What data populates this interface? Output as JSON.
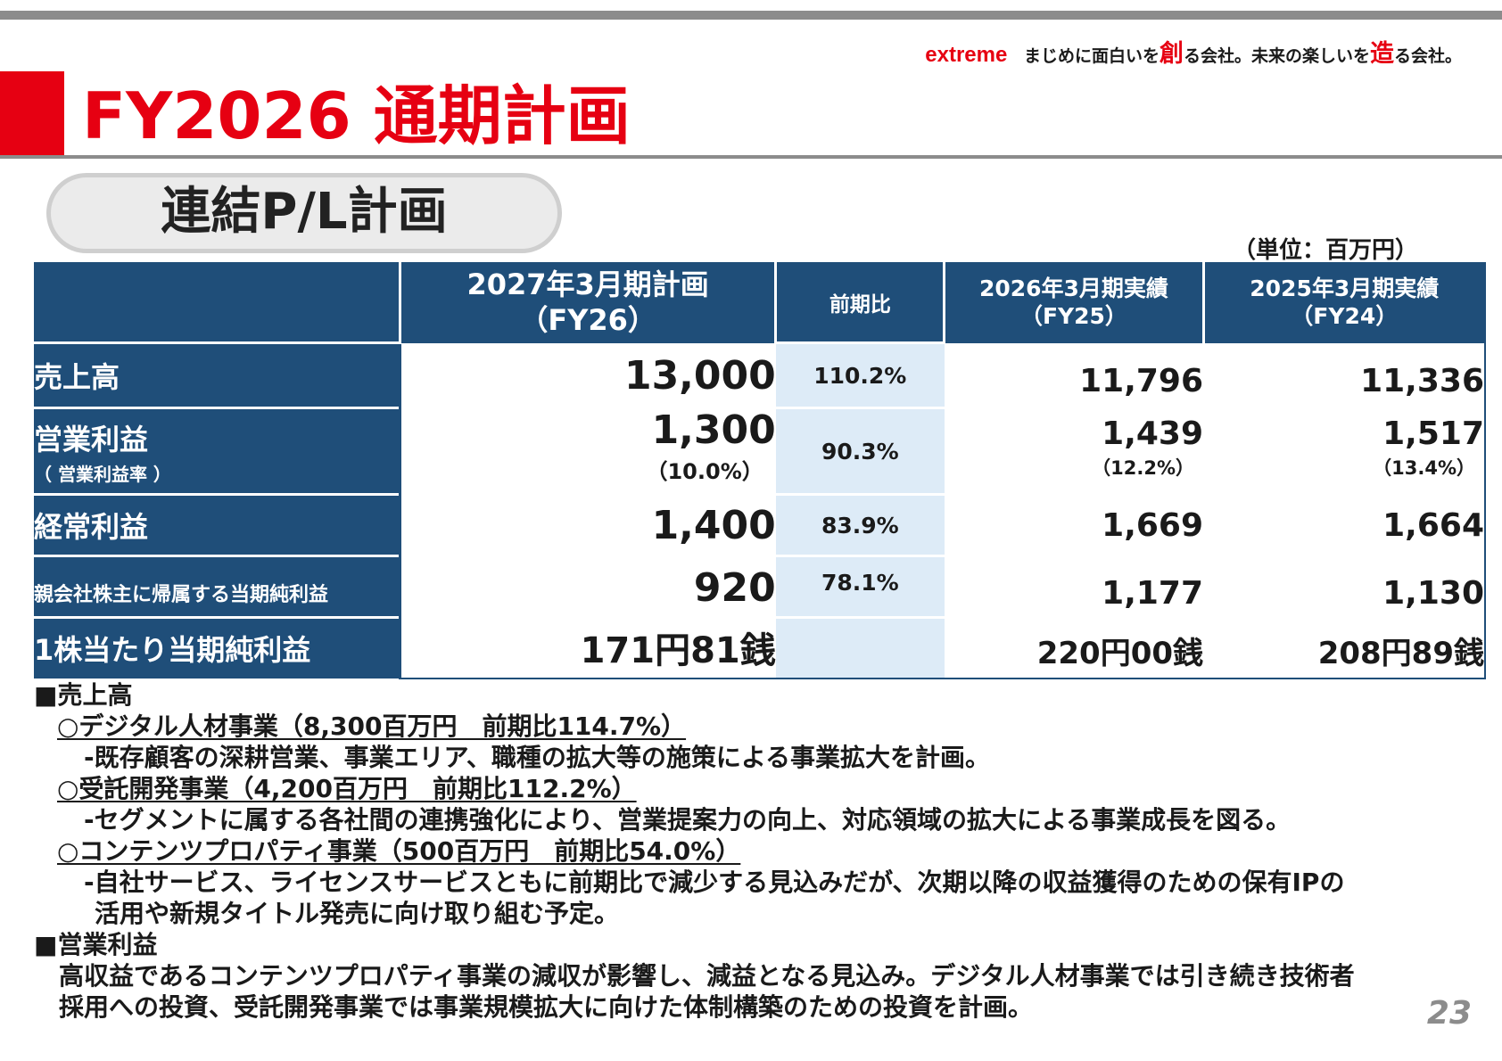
{
  "header": {
    "brand": "extreme",
    "tagline_a": " まじめに面白いを",
    "tagline_b": "創",
    "tagline_c": "る会社。未来の楽しいを",
    "tagline_d": "造",
    "tagline_e": "る会社。"
  },
  "page_title": "FY2026 通期計画",
  "section_title": "連結P/L計画",
  "unit_label": "（単位：百万円）",
  "table": {
    "columns": [
      {
        "line1": "2027年3月期計画",
        "line2": "（FY26）"
      },
      {
        "line1": "前期比",
        "line2": ""
      },
      {
        "line1": "2026年3月期実績",
        "line2": "（FY25）"
      },
      {
        "line1": "2025年3月期実績",
        "line2": "（FY24）"
      }
    ],
    "rows": [
      {
        "label": "売上高",
        "sub": "",
        "plan": "13,000",
        "plan_pct": "",
        "yoy": "110.2%",
        "fy25": "11,796",
        "fy25_pct": "",
        "fy24": "11,336",
        "fy24_pct": ""
      },
      {
        "label": "営業利益",
        "sub": "（ 営業利益率 ）",
        "plan": "1,300",
        "plan_pct": "（10.0%）",
        "yoy": "90.3%",
        "fy25": "1,439",
        "fy25_pct": "（12.2%）",
        "fy24": "1,517",
        "fy24_pct": "（13.4%）"
      },
      {
        "label": "経常利益",
        "sub": "",
        "plan": "1,400",
        "plan_pct": "",
        "yoy": "83.9%",
        "fy25": "1,669",
        "fy25_pct": "",
        "fy24": "1,664",
        "fy24_pct": ""
      },
      {
        "label": "親会社株主に帰属する当期純利益",
        "sub": "",
        "plan": "920",
        "plan_pct": "",
        "yoy": "78.1%",
        "fy25": "1,177",
        "fy25_pct": "",
        "fy24": "1,130",
        "fy24_pct": ""
      },
      {
        "label": "1株当たり当期純利益",
        "sub": "",
        "plan": "171円81銭",
        "plan_pct": "",
        "yoy": "",
        "fy25": "220円00銭",
        "fy25_pct": "",
        "fy24": "208円89銭",
        "fy24_pct": ""
      }
    ]
  },
  "notes": {
    "sales_heading": "■売上高",
    "seg1_title": "○デジタル人材事業（8,300百万円　前期比114.7%）",
    "seg1_desc": "-既存顧客の深耕営業、事業エリア、職種の拡大等の施策による事業拡大を計画。",
    "seg2_title": "○受託開発事業（4,200百万円　前期比112.2%）",
    "seg2_desc": "-セグメントに属する各社間の連携強化により、営業提案力の向上、対応領域の拡大による事業成長を図る。",
    "seg3_title": "○コンテンツプロパティ事業（500百万円　前期比54.0%）",
    "seg3_desc1": "-自社サービス、ライセンスサービスともに前期比で減少する見込みだが、次期以降の収益獲得のための保有IPの",
    "seg3_desc2": "活用や新規タイトル発売に向け取り組む予定。",
    "op_heading": "■営業利益",
    "op_desc1": "高収益であるコンテンツプロパティ事業の減収が影響し、減益となる見込み。デジタル人材事業では引き続き技術者",
    "op_desc2": "採用への投資、受託開発事業では事業規模拡大に向けた体制構築のための投資を計画。"
  },
  "page_number": "23"
}
